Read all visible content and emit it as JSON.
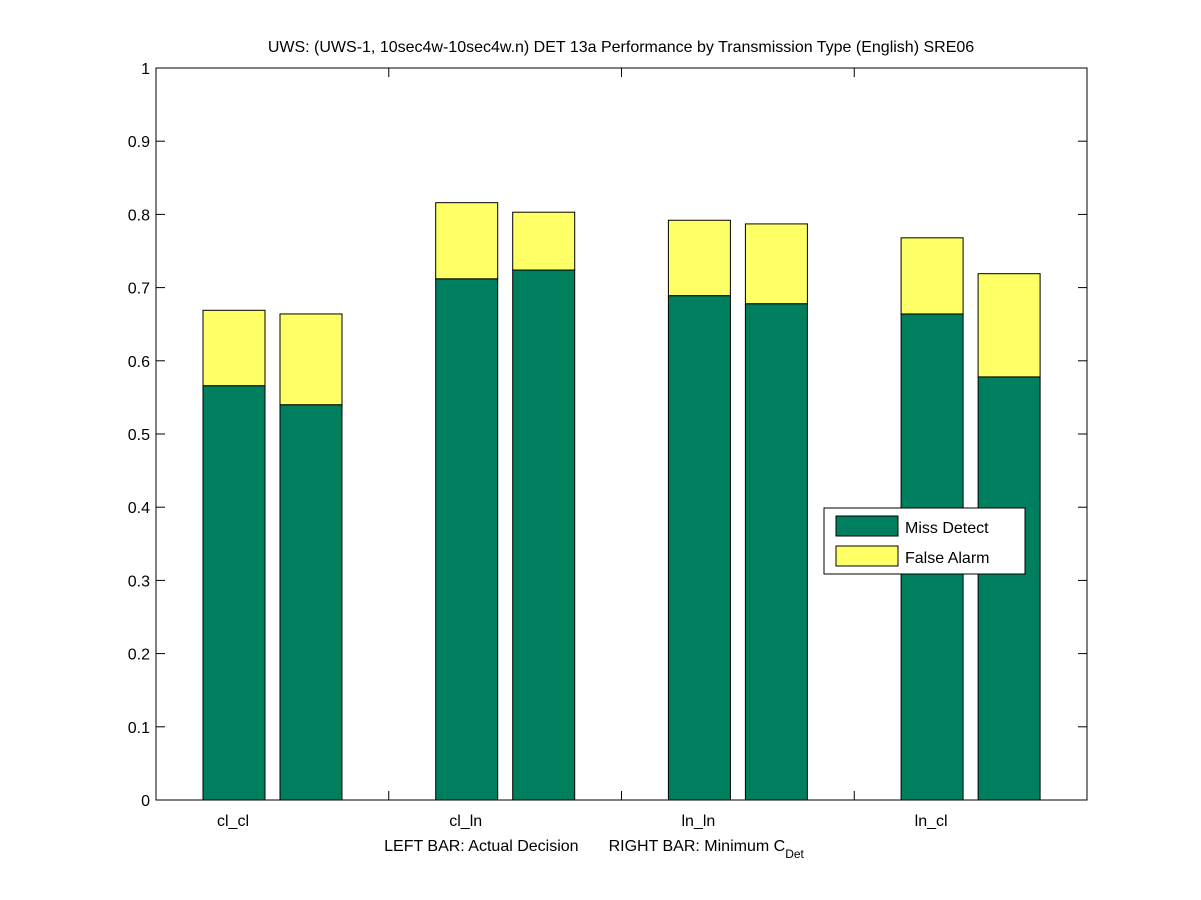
{
  "chart_data": {
    "type": "bar",
    "stacked": true,
    "title": "UWS: (UWS-1, 10sec4w-10sec4w.n) DET 13a Performance by Transmission Type (English) SRE06",
    "xlabel_left": "LEFT BAR: Actual Decision",
    "xlabel_right": "RIGHT BAR: Minimum C",
    "xlabel_right_sub": "Det",
    "categories": [
      "cl_cl",
      "cl_ln",
      "ln_ln",
      "ln_cl"
    ],
    "ylim": [
      0,
      1
    ],
    "yticks": [
      "0",
      "0.1",
      "0.2",
      "0.3",
      "0.4",
      "0.5",
      "0.6",
      "0.7",
      "0.8",
      "0.9",
      "1"
    ],
    "legend": {
      "placement": "right",
      "entries": [
        "Miss Detect",
        "False Alarm"
      ]
    },
    "colors": {
      "miss": "#007f5f",
      "fa": "#ffff66"
    },
    "series": [
      {
        "name": "Miss Detect",
        "left": [
          0.566,
          0.712,
          0.689,
          0.664
        ],
        "right": [
          0.54,
          0.724,
          0.678,
          0.578
        ]
      },
      {
        "name": "False Alarm",
        "left": [
          0.103,
          0.104,
          0.103,
          0.104
        ],
        "right": [
          0.124,
          0.079,
          0.109,
          0.141
        ]
      }
    ]
  }
}
